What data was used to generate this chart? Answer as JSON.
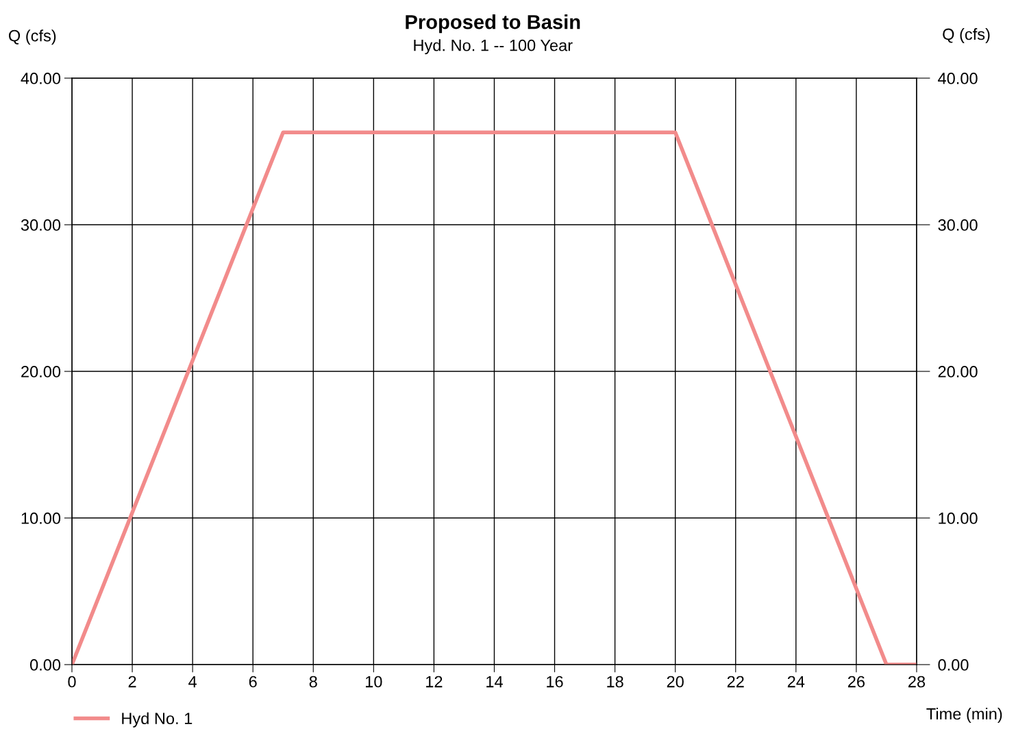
{
  "chart_data": {
    "type": "line",
    "title": "Proposed to Basin",
    "subtitle": "Hyd. No. 1 -- 100 Year",
    "xlabel": "Time (min)",
    "ylabel": "Q (cfs)",
    "y2label": "Q (cfs)",
    "x": [
      0,
      7,
      20,
      27,
      28
    ],
    "series": [
      {
        "name": "Hyd No. 1",
        "color": "#f28b8b",
        "values": [
          0,
          36.3,
          36.3,
          0,
          0
        ]
      }
    ],
    "xlim": [
      0,
      28
    ],
    "xticks": [
      0,
      2,
      4,
      6,
      8,
      10,
      12,
      14,
      16,
      18,
      20,
      22,
      24,
      26,
      28
    ],
    "ylim": [
      0,
      40
    ],
    "yticks": [
      {
        "value": 0,
        "label": "0.00"
      },
      {
        "value": 10,
        "label": "10.00"
      },
      {
        "value": 20,
        "label": "20.00"
      },
      {
        "value": 30,
        "label": "30.00"
      },
      {
        "value": 40,
        "label": "40.00"
      }
    ],
    "y2lim": [
      0,
      40
    ],
    "y2ticks": [
      {
        "value": 0,
        "label": "0.00"
      },
      {
        "value": 10,
        "label": "10.00"
      },
      {
        "value": 20,
        "label": "20.00"
      },
      {
        "value": 30,
        "label": "30.00"
      },
      {
        "value": 40,
        "label": "40.00"
      }
    ],
    "grid": true,
    "legend": "bottom left",
    "marker": "none",
    "line_style": "solid"
  }
}
